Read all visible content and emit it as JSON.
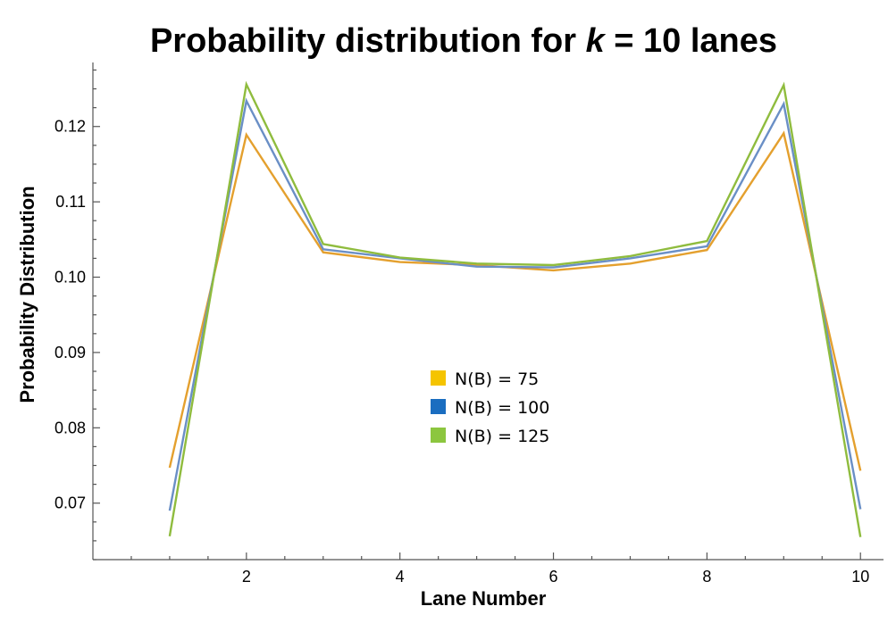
{
  "chart_data": {
    "type": "line",
    "title_prefix": "Probability distribution for ",
    "title_var": "k",
    "title_suffix": " = 10 lanes",
    "xlabel": "Lane Number",
    "ylabel": "Probability Distribution",
    "xlim": [
      0,
      10.3
    ],
    "ylim": [
      0.0625,
      0.1285
    ],
    "x_ticks": [
      2,
      4,
      6,
      8,
      10
    ],
    "x_minor_ticks": [
      0.5,
      1,
      1.5,
      2.5,
      3,
      3.5,
      4.5,
      5,
      5.5,
      6.5,
      7,
      7.5,
      8.5,
      9,
      9.5
    ],
    "y_ticks": [
      0.07,
      0.08,
      0.09,
      0.1,
      0.11,
      0.12
    ],
    "y_tick_labels": [
      "0.07",
      "0.08",
      "0.09",
      "0.10",
      "0.11",
      "0.12"
    ],
    "x": [
      1,
      2,
      3,
      4,
      5,
      6,
      7,
      8,
      9,
      10
    ],
    "grid": false,
    "legend_position": "center",
    "series": [
      {
        "name": "N(B) = 75",
        "legend_color": "#F5C400",
        "line_color": "#E4A02E",
        "values": [
          0.0747,
          0.1189,
          0.1033,
          0.102,
          0.1016,
          0.1009,
          0.1018,
          0.1036,
          0.1191,
          0.0743
        ]
      },
      {
        "name": "N(B) = 100",
        "legend_color": "#1A6DC0",
        "line_color": "#6A8FC6",
        "values": [
          0.069,
          0.1234,
          0.1037,
          0.1025,
          0.1014,
          0.1013,
          0.1025,
          0.1041,
          0.123,
          0.0692
        ]
      },
      {
        "name": "N(B) = 125",
        "legend_color": "#8CC63F",
        "line_color": "#8FBC3E",
        "values": [
          0.0656,
          0.1256,
          0.1044,
          0.1026,
          0.1018,
          0.1016,
          0.1028,
          0.1048,
          0.1255,
          0.0655
        ]
      }
    ]
  }
}
